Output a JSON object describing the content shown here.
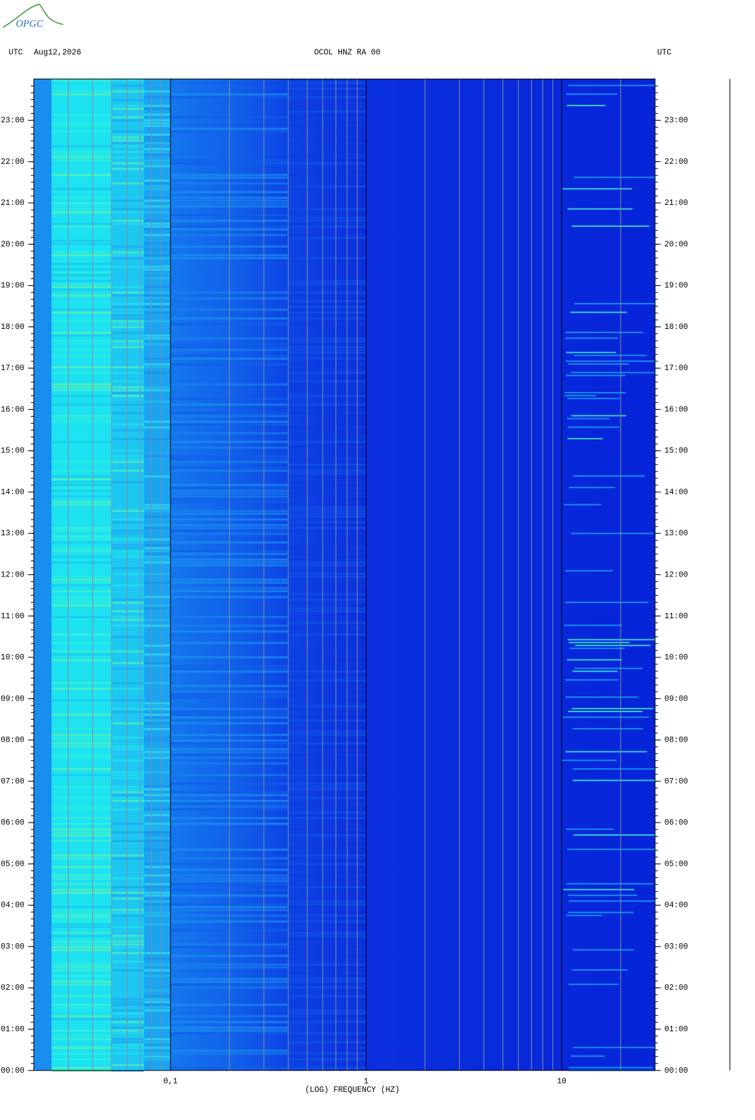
{
  "logo": "OPGC",
  "chart_data": {
    "type": "spectrogram",
    "title": "OCOL HNZ RA 00",
    "time_zone": "UTC",
    "date": "Aug12,2026",
    "xlabel": "(LOG) FREQUENCY (HZ)",
    "xlog": true,
    "xlim": [
      0.02,
      30
    ],
    "xticks": [
      {
        "value": 0.1,
        "label": "0,1"
      },
      1,
      10
    ],
    "xminor_ticks": [
      0.03,
      0.04,
      0.05,
      0.06,
      0.07,
      0.08,
      0.09,
      0.2,
      0.3,
      0.4,
      0.5,
      0.6,
      0.7,
      0.8,
      0.9,
      2,
      3,
      4,
      5,
      6,
      7,
      8,
      9,
      20
    ],
    "ylim": [
      0,
      24
    ],
    "yticks": [
      {
        "value": 0,
        "label": "00:00"
      },
      {
        "value": 1,
        "label": "01:00"
      },
      {
        "value": 2,
        "label": "02:00"
      },
      {
        "value": 3,
        "label": "03:00"
      },
      {
        "value": 4,
        "label": "04:00"
      },
      {
        "value": 5,
        "label": "05:00"
      },
      {
        "value": 6,
        "label": "06:00"
      },
      {
        "value": 7,
        "label": "07:00"
      },
      {
        "value": 8,
        "label": "08:00"
      },
      {
        "value": 9,
        "label": "09:00"
      },
      {
        "value": 10,
        "label": "10:00"
      },
      {
        "value": 11,
        "label": "11:00"
      },
      {
        "value": 12,
        "label": "12:00"
      },
      {
        "value": 13,
        "label": "13:00"
      },
      {
        "value": 14,
        "label": "14:00"
      },
      {
        "value": 15,
        "label": "15:00"
      },
      {
        "value": 16,
        "label": "16:00"
      },
      {
        "value": 17,
        "label": "17:00"
      },
      {
        "value": 18,
        "label": "18:00"
      },
      {
        "value": 19,
        "label": "19:00"
      },
      {
        "value": 20,
        "label": "20:00"
      },
      {
        "value": 21,
        "label": "21:00"
      },
      {
        "value": 22,
        "label": "22:00"
      },
      {
        "value": 23,
        "label": "23:00"
      }
    ]
  }
}
